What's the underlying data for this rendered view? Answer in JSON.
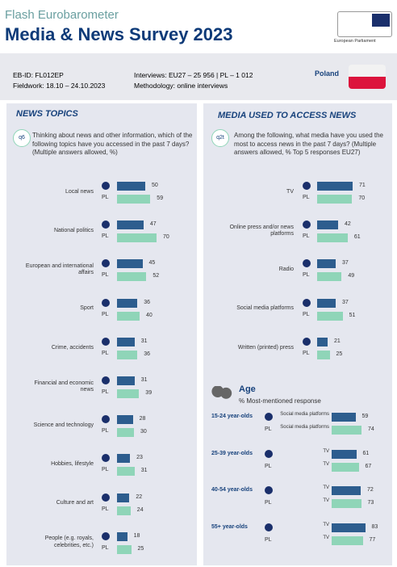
{
  "header": {
    "kicker": "Flash Eurobarometer",
    "title": "Media & News Survey 2023",
    "logo_text": "European Parliament"
  },
  "info": {
    "id": "EB-ID: FL012EP",
    "fieldwork": "Fieldwork: 18.10 – 24.10.2023",
    "interviews": "Interviews: EU27 – 25 956 | PL – 1 012",
    "methodology": "Methodology: online interviews",
    "country": "Poland"
  },
  "pl_label": "PL",
  "colors": {
    "eu": "#2d5d8e",
    "pl": "#8fd5b8"
  },
  "topics": {
    "heading": "NEWS TOPICS",
    "qid": "q6",
    "question": "Thinking about news and other information, which of the following topics have you accessed in the past 7 days? (Multiple answers allowed, %)",
    "xlim": [
      0,
      100
    ],
    "rows": [
      {
        "label": "Local news",
        "eu": 50,
        "pl": 59
      },
      {
        "label": "National politics",
        "eu": 47,
        "pl": 70
      },
      {
        "label": "European and international affairs",
        "eu": 45,
        "pl": 52
      },
      {
        "label": "Sport",
        "eu": 36,
        "pl": 40
      },
      {
        "label": "Crime, accidents",
        "eu": 31,
        "pl": 36
      },
      {
        "label": "Financial and economic news",
        "eu": 31,
        "pl": 39
      },
      {
        "label": "Science and technology",
        "eu": 28,
        "pl": 30
      },
      {
        "label": "Hobbies, lifestyle",
        "eu": 23,
        "pl": 31
      },
      {
        "label": "Culture and art",
        "eu": 22,
        "pl": 24
      },
      {
        "label": "People (e.g. royals, celebrities, etc.)",
        "eu": 18,
        "pl": 25
      }
    ]
  },
  "media": {
    "heading": "MEDIA USED TO ACCESS NEWS",
    "qid": "q2t",
    "question": "Among the following, what media have you used the most to access news in the past 7 days? (Multiple answers allowed, % Top 5 responses EU27)",
    "xlim": [
      0,
      100
    ],
    "rows": [
      {
        "label": "TV",
        "eu": 71,
        "pl": 70
      },
      {
        "label": "Online press and/or news platforms",
        "eu": 42,
        "pl": 61
      },
      {
        "label": "Radio",
        "eu": 37,
        "pl": 49
      },
      {
        "label": "Social media platforms",
        "eu": 37,
        "pl": 51
      },
      {
        "label": "Written (printed) press",
        "eu": 21,
        "pl": 25
      }
    ]
  },
  "age": {
    "heading": "Age",
    "subtitle": "% Most-mentioned response",
    "xlim": [
      0,
      100
    ],
    "groups": [
      {
        "label": "15-24 year-olds",
        "eu_item": "Social media platforms",
        "eu": 59,
        "pl_item": "Social media platforms",
        "pl": 74
      },
      {
        "label": "25-39 year-olds",
        "eu_item": "TV",
        "eu": 61,
        "pl_item": "TV",
        "pl": 67
      },
      {
        "label": "40-54 year-olds",
        "eu_item": "TV",
        "eu": 72,
        "pl_item": "TV",
        "pl": 73
      },
      {
        "label": "55+ year-olds",
        "eu_item": "TV",
        "eu": 83,
        "pl_item": "TV",
        "pl": 77
      }
    ]
  }
}
